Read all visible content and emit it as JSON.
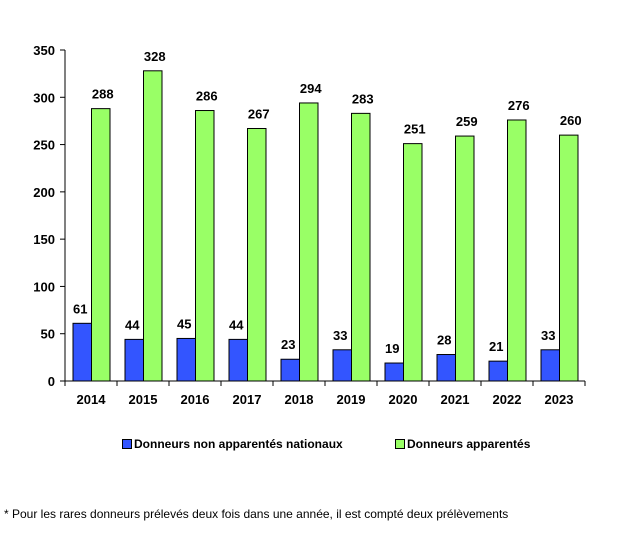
{
  "chart_data": {
    "type": "bar",
    "categories": [
      "2014",
      "2015",
      "2016",
      "2017",
      "2018",
      "2019",
      "2020",
      "2021",
      "2022",
      "2023"
    ],
    "series": [
      {
        "name": "Donneurs non apparentés nationaux",
        "color": "#3355ff",
        "values": [
          61,
          44,
          45,
          44,
          23,
          33,
          19,
          28,
          21,
          33
        ]
      },
      {
        "name": "Donneurs apparentés",
        "color": "#99ff66",
        "values": [
          288,
          328,
          286,
          267,
          294,
          283,
          251,
          259,
          276,
          260
        ]
      }
    ],
    "ylim": [
      0,
      350
    ],
    "yticks": [
      0,
      50,
      100,
      150,
      200,
      250,
      300,
      350
    ],
    "grid": false,
    "legend": "bottom"
  },
  "footnote": "* Pour les rares donneurs prélevés deux fois dans une année, il est compté deux prélèvements"
}
